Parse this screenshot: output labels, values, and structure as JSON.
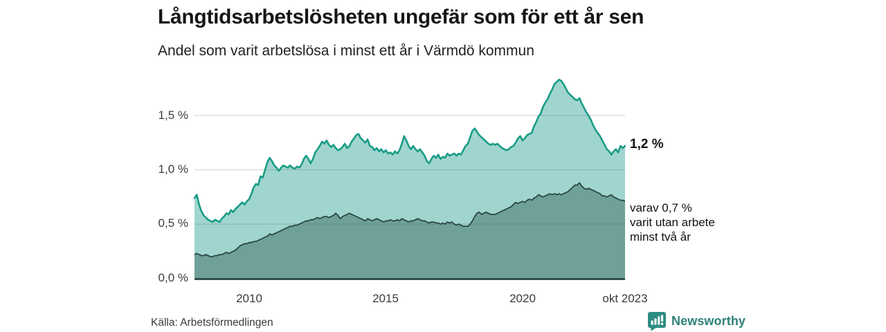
{
  "header": {
    "title": "Långtidsarbetslösheten ungefär som för ett år sen",
    "subtitle": "Andel som varit arbetslösa i minst ett år i Värmdö kommun"
  },
  "chart_data": {
    "type": "area",
    "title": "Långtidsarbetslösheten ungefär som för ett år sen",
    "subtitle": "Andel som varit arbetslösa i minst ett år i Värmdö kommun",
    "x_start": "2008-01",
    "x_end": "2023-10",
    "x_ticks": [
      {
        "index": 24,
        "label": "2010"
      },
      {
        "index": 84,
        "label": "2015"
      },
      {
        "index": 144,
        "label": "2020"
      },
      {
        "index": 189,
        "label": "okt 2023"
      }
    ],
    "y_tick_labels": [
      "0,0 %",
      "0,5 %",
      "1,0 %",
      "1,5 %"
    ],
    "ylim": [
      0,
      1.9
    ],
    "grid": true,
    "legend_position": "none",
    "series": [
      {
        "name": "Arbetslösa minst ett år",
        "fill_color": "#a0d5cf",
        "line_color": "#199c85",
        "end_value_label": "1,2 %",
        "values": [
          0.74,
          0.77,
          0.68,
          0.62,
          0.58,
          0.56,
          0.54,
          0.53,
          0.52,
          0.54,
          0.53,
          0.52,
          0.55,
          0.57,
          0.6,
          0.59,
          0.63,
          0.61,
          0.64,
          0.66,
          0.68,
          0.7,
          0.68,
          0.71,
          0.73,
          0.78,
          0.84,
          0.87,
          0.86,
          0.94,
          0.93,
          1.0,
          1.07,
          1.11,
          1.08,
          1.04,
          1.02,
          0.99,
          1.02,
          1.04,
          1.03,
          1.02,
          1.04,
          1.02,
          1.01,
          1.03,
          1.02,
          1.05,
          1.1,
          1.13,
          1.1,
          1.06,
          1.1,
          1.16,
          1.19,
          1.22,
          1.26,
          1.24,
          1.27,
          1.23,
          1.21,
          1.23,
          1.2,
          1.18,
          1.19,
          1.21,
          1.24,
          1.2,
          1.22,
          1.26,
          1.29,
          1.32,
          1.33,
          1.29,
          1.27,
          1.25,
          1.28,
          1.22,
          1.21,
          1.18,
          1.2,
          1.17,
          1.19,
          1.16,
          1.18,
          1.15,
          1.16,
          1.14,
          1.17,
          1.15,
          1.18,
          1.24,
          1.31,
          1.27,
          1.22,
          1.19,
          1.22,
          1.19,
          1.17,
          1.19,
          1.16,
          1.13,
          1.08,
          1.06,
          1.1,
          1.13,
          1.11,
          1.14,
          1.1,
          1.12,
          1.11,
          1.15,
          1.13,
          1.14,
          1.15,
          1.13,
          1.15,
          1.14,
          1.18,
          1.22,
          1.24,
          1.3,
          1.36,
          1.38,
          1.35,
          1.32,
          1.3,
          1.28,
          1.26,
          1.24,
          1.23,
          1.24,
          1.23,
          1.24,
          1.22,
          1.2,
          1.19,
          1.18,
          1.19,
          1.21,
          1.22,
          1.25,
          1.29,
          1.31,
          1.27,
          1.29,
          1.32,
          1.33,
          1.34,
          1.4,
          1.44,
          1.49,
          1.52,
          1.58,
          1.62,
          1.65,
          1.7,
          1.74,
          1.79,
          1.81,
          1.83,
          1.82,
          1.79,
          1.75,
          1.71,
          1.69,
          1.67,
          1.65,
          1.64,
          1.66,
          1.61,
          1.57,
          1.53,
          1.5,
          1.46,
          1.41,
          1.37,
          1.34,
          1.31,
          1.27,
          1.23,
          1.19,
          1.17,
          1.14,
          1.17,
          1.19,
          1.16,
          1.22,
          1.2,
          1.22
        ]
      },
      {
        "name": "Varav utan arbete minst två år",
        "fill_color": "#6fa09a",
        "line_color": "#2b4742",
        "end_value_label": "varav 0,7 % varit utan arbete minst två år",
        "values": [
          0.22,
          0.23,
          0.22,
          0.21,
          0.21,
          0.22,
          0.21,
          0.2,
          0.2,
          0.21,
          0.21,
          0.22,
          0.22,
          0.23,
          0.24,
          0.23,
          0.24,
          0.25,
          0.26,
          0.28,
          0.3,
          0.31,
          0.32,
          0.32,
          0.33,
          0.33,
          0.34,
          0.34,
          0.35,
          0.36,
          0.37,
          0.38,
          0.39,
          0.41,
          0.4,
          0.41,
          0.42,
          0.43,
          0.44,
          0.45,
          0.46,
          0.47,
          0.48,
          0.48,
          0.49,
          0.49,
          0.5,
          0.51,
          0.52,
          0.53,
          0.53,
          0.54,
          0.54,
          0.55,
          0.56,
          0.55,
          0.56,
          0.57,
          0.57,
          0.56,
          0.57,
          0.58,
          0.6,
          0.58,
          0.55,
          0.57,
          0.58,
          0.59,
          0.6,
          0.59,
          0.58,
          0.57,
          0.56,
          0.55,
          0.54,
          0.53,
          0.55,
          0.54,
          0.53,
          0.54,
          0.55,
          0.54,
          0.53,
          0.52,
          0.53,
          0.53,
          0.54,
          0.53,
          0.53,
          0.54,
          0.53,
          0.55,
          0.54,
          0.53,
          0.52,
          0.53,
          0.53,
          0.54,
          0.55,
          0.54,
          0.53,
          0.53,
          0.52,
          0.51,
          0.52,
          0.52,
          0.51,
          0.51,
          0.5,
          0.51,
          0.5,
          0.52,
          0.51,
          0.52,
          0.5,
          0.49,
          0.5,
          0.49,
          0.48,
          0.48,
          0.48,
          0.5,
          0.53,
          0.57,
          0.6,
          0.61,
          0.59,
          0.6,
          0.61,
          0.6,
          0.59,
          0.59,
          0.59,
          0.6,
          0.61,
          0.62,
          0.63,
          0.64,
          0.65,
          0.66,
          0.68,
          0.7,
          0.69,
          0.7,
          0.71,
          0.7,
          0.72,
          0.73,
          0.72,
          0.74,
          0.75,
          0.77,
          0.76,
          0.75,
          0.76,
          0.77,
          0.78,
          0.77,
          0.78,
          0.77,
          0.78,
          0.77,
          0.78,
          0.79,
          0.8,
          0.82,
          0.84,
          0.86,
          0.86,
          0.88,
          0.85,
          0.83,
          0.82,
          0.83,
          0.82,
          0.81,
          0.8,
          0.79,
          0.78,
          0.76,
          0.76,
          0.75,
          0.76,
          0.77,
          0.75,
          0.74,
          0.73,
          0.72,
          0.72,
          0.71
        ]
      }
    ]
  },
  "annotations": {
    "total": "1,2 %",
    "two_year_lines": [
      "varav 0,7 %",
      "varit utan arbete",
      "minst två år"
    ]
  },
  "footer": {
    "source": "Källa: Arbetsförmedlingen",
    "brand": "Newsworthy"
  },
  "colors": {
    "series_fill_light": "#a0d5cf",
    "series_line_light": "#199c85",
    "series_fill_dark": "#6fa09a",
    "series_line_dark": "#2b4742",
    "baseline": "#1d3935",
    "gridline": "#d9d9d9",
    "brand_teal": "#2e8078"
  }
}
